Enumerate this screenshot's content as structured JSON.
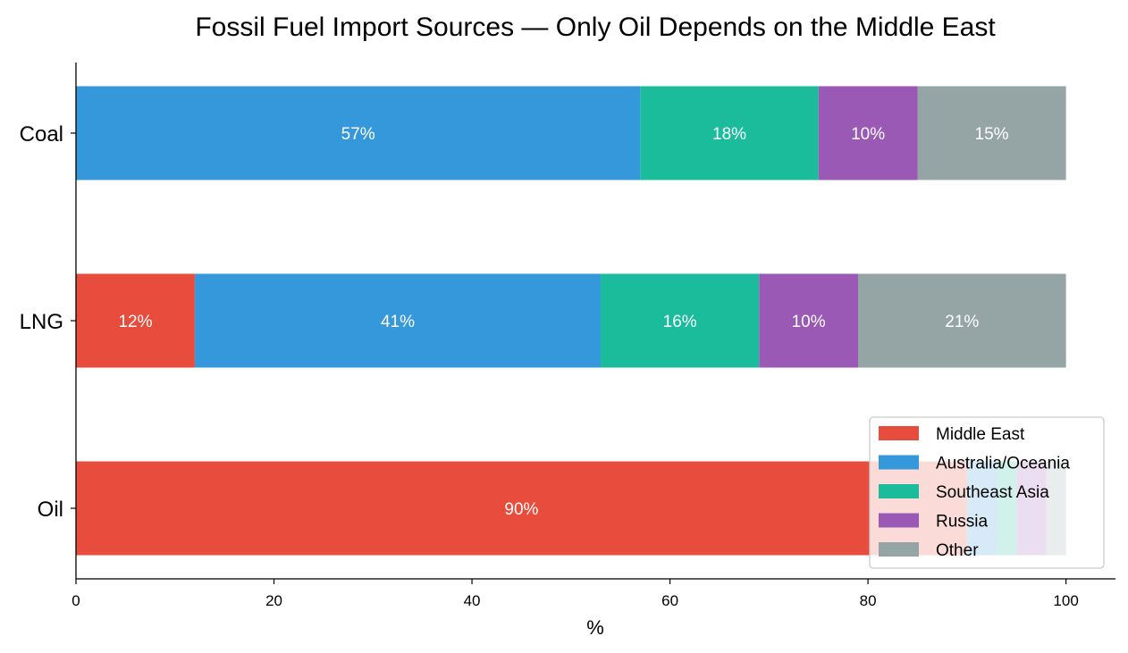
{
  "chart_data": {
    "type": "bar",
    "orientation": "horizontal",
    "stacked": true,
    "title": "Fossil Fuel Import Sources — Only Oil Depends on the Middle East",
    "xlabel": "%",
    "ylabel": "",
    "xlim": [
      0,
      105
    ],
    "xticks": [
      0,
      20,
      40,
      60,
      80,
      100
    ],
    "grid": false,
    "legend_position": "lower-right",
    "categories": [
      "Coal",
      "LNG",
      "Oil"
    ],
    "series": [
      {
        "name": "Middle East",
        "color": "#e74c3c",
        "values": [
          0,
          12,
          90
        ],
        "labels": [
          "",
          "12%",
          "90%"
        ]
      },
      {
        "name": "Australia/Oceania",
        "color": "#3498db",
        "values": [
          57,
          41,
          3
        ],
        "labels": [
          "57%",
          "41%",
          ""
        ]
      },
      {
        "name": "Southeast Asia",
        "color": "#1abc9c",
        "values": [
          18,
          16,
          2
        ],
        "labels": [
          "18%",
          "16%",
          ""
        ]
      },
      {
        "name": "Russia",
        "color": "#9b59b6",
        "values": [
          10,
          10,
          3
        ],
        "labels": [
          "10%",
          "10%",
          ""
        ]
      },
      {
        "name": "Other",
        "color": "#95a5a6",
        "values": [
          15,
          21,
          2
        ],
        "labels": [
          "15%",
          "21%",
          ""
        ]
      }
    ]
  }
}
